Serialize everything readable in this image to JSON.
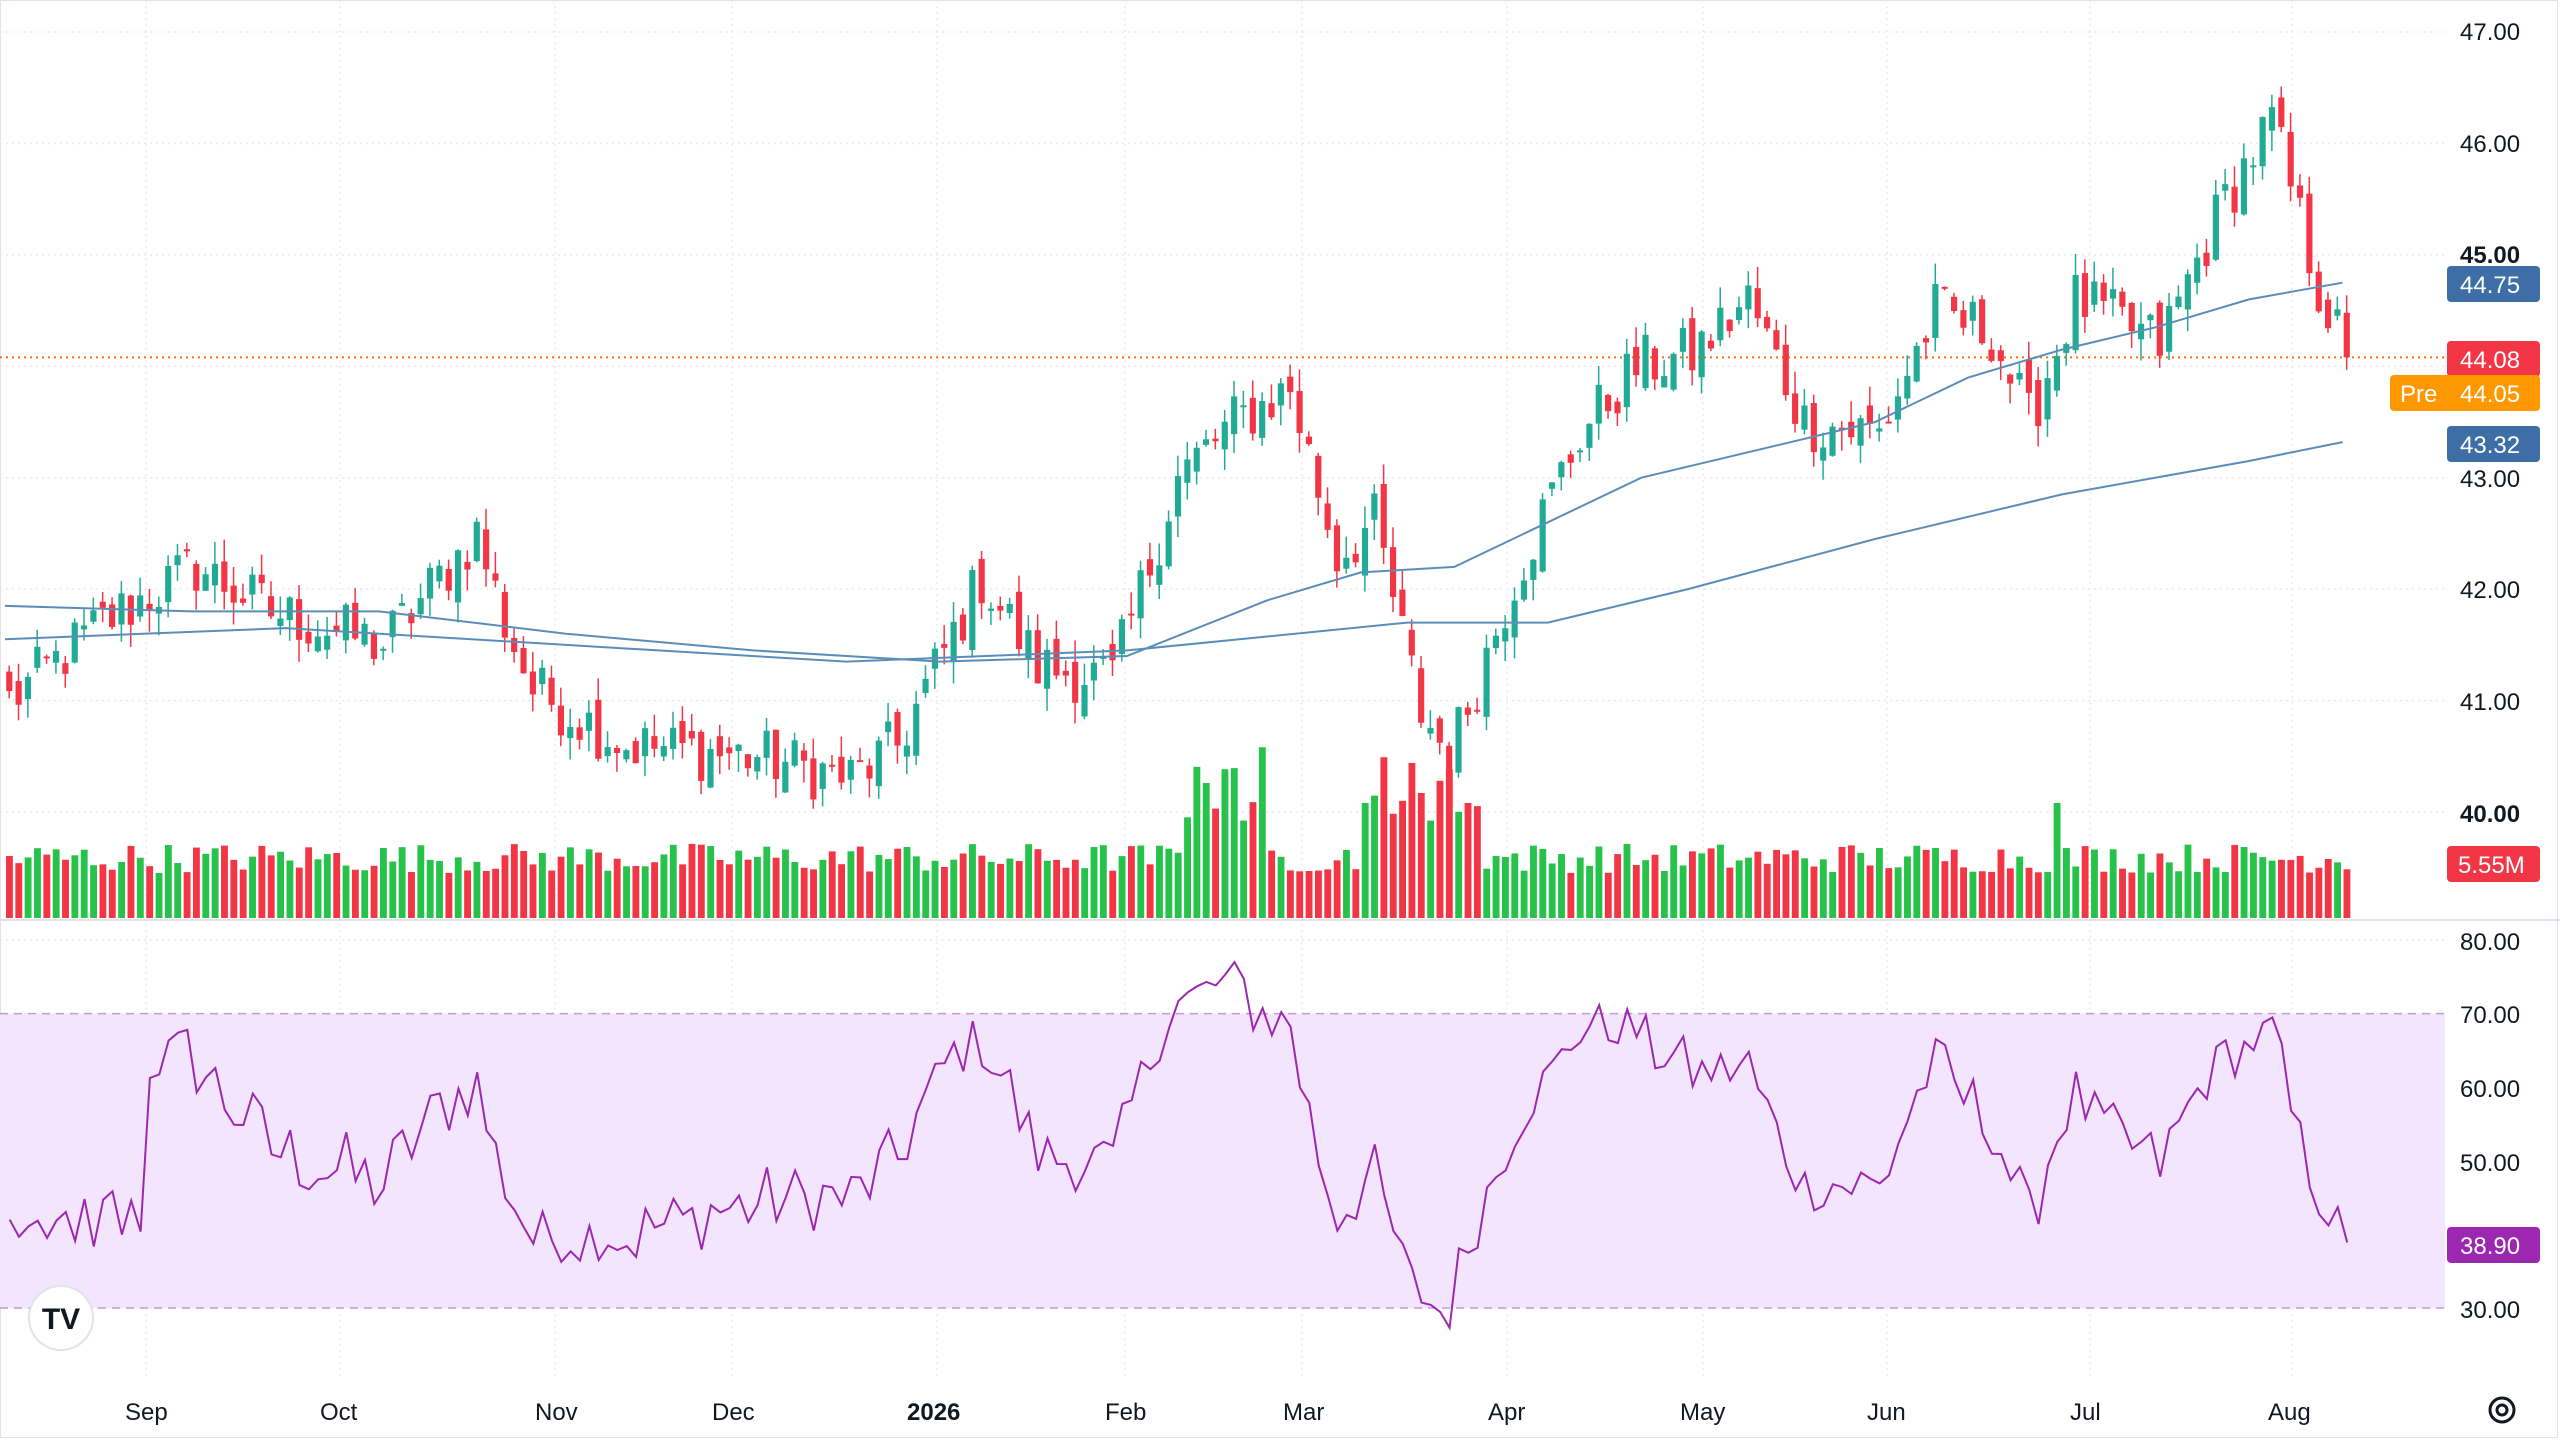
{
  "colors": {
    "up": "#22ab94",
    "up_bar": "#26c24a",
    "down": "#f23645",
    "ma50": "#5b8db8",
    "ma200": "#5b8db8",
    "rsi": "#9c27b0",
    "rsi_band": "#f3e5fd",
    "grid": "#e9ebf0",
    "last_line": "#ff6d00",
    "badge_ma": "#3d6fa6",
    "badge_last": "#f23645",
    "badge_pre": "#ff9800",
    "badge_rsi": "#9c27b0",
    "badge_vol": "#f23645"
  },
  "price_axis": {
    "ticks": [
      "47.00",
      "46.00",
      "45.00",
      "43.00",
      "42.00",
      "41.00",
      "40.00"
    ],
    "bold_tick": "45.00"
  },
  "rsi_axis": {
    "ticks": [
      "80.00",
      "70.00",
      "60.00",
      "50.00",
      "30.00"
    ]
  },
  "badges": {
    "ma50": "44.75",
    "last": "44.08",
    "pre_label": "Pre",
    "pre_value": "44.05",
    "ma200": "43.32",
    "volume": "5.55M",
    "rsi": "38.90"
  },
  "time_axis": {
    "labels": [
      {
        "text": "Sep",
        "bold": false
      },
      {
        "text": "Oct",
        "bold": false
      },
      {
        "text": "Nov",
        "bold": false
      },
      {
        "text": "Dec",
        "bold": false
      },
      {
        "text": "2026",
        "bold": true
      },
      {
        "text": "Feb",
        "bold": false
      },
      {
        "text": "Mar",
        "bold": false
      },
      {
        "text": "Apr",
        "bold": false
      },
      {
        "text": "May",
        "bold": false
      },
      {
        "text": "Jun",
        "bold": false
      },
      {
        "text": "Jul",
        "bold": false
      },
      {
        "text": "Aug",
        "bold": false
      }
    ]
  },
  "logo_text": "TV",
  "chart_data": {
    "type": "candlestick",
    "y_range_price": [
      39.0,
      47.3
    ],
    "y_range_rsi": [
      25,
      82
    ],
    "rsi_bands": [
      30,
      70
    ],
    "anchors": [
      {
        "bar": 0,
        "close": 41.0
      },
      {
        "bar": 10,
        "close": 41.7
      },
      {
        "bar": 20,
        "close": 42.2
      },
      {
        "bar": 28,
        "close": 41.8
      },
      {
        "bar": 40,
        "close": 41.5
      },
      {
        "bar": 50,
        "close": 42.5
      },
      {
        "bar": 53,
        "close": 41.7
      },
      {
        "bar": 56,
        "close": 41.1
      },
      {
        "bar": 66,
        "close": 40.6
      },
      {
        "bar": 80,
        "close": 40.5
      },
      {
        "bar": 90,
        "close": 40.3
      },
      {
        "bar": 95,
        "close": 40.6
      },
      {
        "bar": 104,
        "close": 42.1
      },
      {
        "bar": 110,
        "close": 41.3
      },
      {
        "bar": 118,
        "close": 41.2
      },
      {
        "bar": 125,
        "close": 43.0
      },
      {
        "bar": 131,
        "close": 43.5
      },
      {
        "bar": 137,
        "close": 43.8
      },
      {
        "bar": 142,
        "close": 42.3
      },
      {
        "bar": 146,
        "close": 42.6
      },
      {
        "bar": 151,
        "close": 40.9
      },
      {
        "bar": 154,
        "close": 40.5
      },
      {
        "bar": 161,
        "close": 42.1
      },
      {
        "bar": 168,
        "close": 43.4
      },
      {
        "bar": 174,
        "close": 44.0
      },
      {
        "bar": 180,
        "close": 44.1
      },
      {
        "bar": 186,
        "close": 44.6
      },
      {
        "bar": 192,
        "close": 43.5
      },
      {
        "bar": 200,
        "close": 43.4
      },
      {
        "bar": 206,
        "close": 44.5
      },
      {
        "bar": 212,
        "close": 44.3
      },
      {
        "bar": 216,
        "close": 43.5
      },
      {
        "bar": 221,
        "close": 44.6
      },
      {
        "bar": 230,
        "close": 44.2
      },
      {
        "bar": 237,
        "close": 45.5
      },
      {
        "bar": 242,
        "close": 46.2
      },
      {
        "bar": 247,
        "close": 44.7
      },
      {
        "bar": 250,
        "close": 44.08
      }
    ],
    "ma50_points": [
      [
        0,
        41.85
      ],
      [
        20,
        41.8
      ],
      [
        40,
        41.8
      ],
      [
        60,
        41.6
      ],
      [
        80,
        41.45
      ],
      [
        100,
        41.35
      ],
      [
        120,
        41.4
      ],
      [
        135,
        41.9
      ],
      [
        145,
        42.15
      ],
      [
        155,
        42.2
      ],
      [
        165,
        42.6
      ],
      [
        175,
        43.0
      ],
      [
        190,
        43.3
      ],
      [
        200,
        43.5
      ],
      [
        210,
        43.9
      ],
      [
        220,
        44.15
      ],
      [
        230,
        44.35
      ],
      [
        240,
        44.6
      ],
      [
        250,
        44.75
      ]
    ],
    "ma200_points": [
      [
        0,
        41.55
      ],
      [
        30,
        41.65
      ],
      [
        60,
        41.5
      ],
      [
        90,
        41.35
      ],
      [
        120,
        41.45
      ],
      [
        150,
        41.7
      ],
      [
        165,
        41.7
      ],
      [
        180,
        42.0
      ],
      [
        200,
        42.45
      ],
      [
        220,
        42.85
      ],
      [
        240,
        43.15
      ],
      [
        250,
        43.32
      ]
    ],
    "rsi_last": 38.9
  }
}
